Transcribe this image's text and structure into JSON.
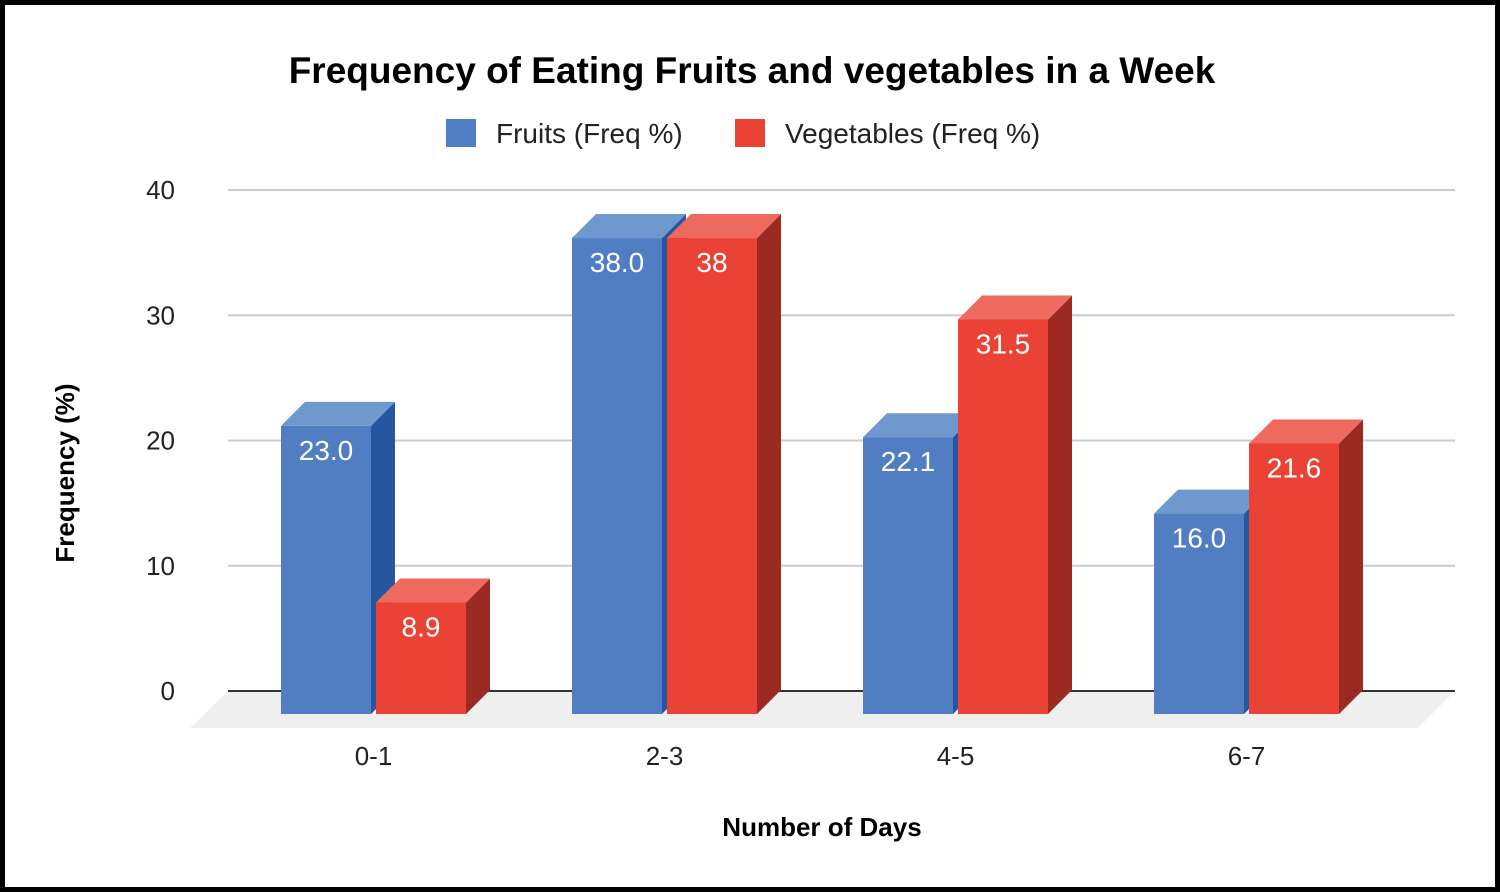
{
  "chart_data": {
    "type": "bar",
    "title": "Frequency of Eating Fruits and vegetables in a Week",
    "xlabel": "Number of Days",
    "ylabel": "Frequency (%)",
    "ylim": [
      0,
      40
    ],
    "yticks": [
      "0",
      "10",
      "20",
      "30",
      "40"
    ],
    "grid": true,
    "legend_position": "top",
    "categories": [
      "0-1",
      "2-3",
      "4-5",
      "6-7"
    ],
    "series": [
      {
        "name": "Fruits (Freq %)",
        "values": [
          23.0,
          38.0,
          22.1,
          16.0
        ],
        "labels": [
          "23.0",
          "38.0",
          "22.1",
          "16.0"
        ],
        "color": "#517dc2",
        "top_color": "#6f98cf",
        "side_color": "#2756a0"
      },
      {
        "name": "Vegetables (Freq %)",
        "values": [
          8.9,
          38,
          31.5,
          21.6
        ],
        "labels": [
          "8.9",
          "38",
          "31.5",
          "21.6"
        ],
        "color": "#ea4335",
        "top_color": "#ee6a5f",
        "side_color": "#9b2b22"
      }
    ]
  }
}
